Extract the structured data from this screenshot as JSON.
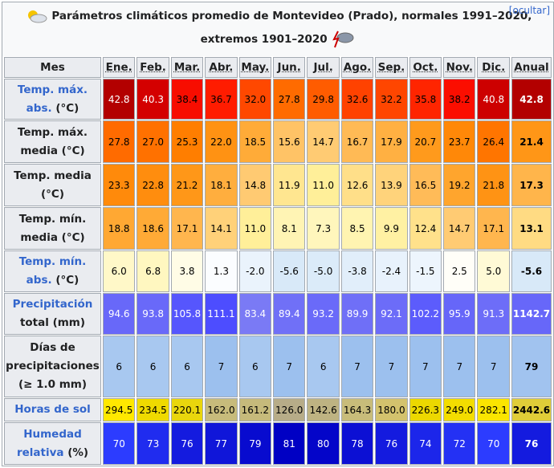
{
  "header": {
    "title_1": "Parámetros climáticos promedio de Montevideo (Prado), normales 1991–2020,",
    "title_2": "extremos 1901–2020",
    "toggle": "[ocultar]"
  },
  "table": {
    "columns": [
      "Mes",
      "Ene.",
      "Feb.",
      "Mar.",
      "Abr.",
      "May.",
      "Jun.",
      "Jul.",
      "Ago.",
      "Sep.",
      "Oct.",
      "Nov.",
      "Dic.",
      "Anual"
    ],
    "rows": [
      {
        "link": "Temp. máx. abs.",
        "text": "(°C)",
        "cells": [
          "42.8",
          "40.3",
          "38.4",
          "36.7",
          "32.0",
          "27.8",
          "29.8",
          "32.6",
          "32.2",
          "35.8",
          "38.2",
          "40.8",
          "42.8"
        ]
      },
      {
        "text": "Temp. máx. media (°C)",
        "cells": [
          "27.8",
          "27.0",
          "25.3",
          "22.0",
          "18.5",
          "15.6",
          "14.7",
          "16.7",
          "17.9",
          "20.7",
          "23.7",
          "26.4",
          "21.4"
        ]
      },
      {
        "text": "Temp. media (°C)",
        "cells": [
          "23.3",
          "22.8",
          "21.2",
          "18.1",
          "14.8",
          "11.9",
          "11.0",
          "12.6",
          "13.9",
          "16.5",
          "19.2",
          "21.8",
          "17.3"
        ]
      },
      {
        "text": "Temp. mín. media (°C)",
        "cells": [
          "18.8",
          "18.6",
          "17.1",
          "14.1",
          "11.0",
          "8.1",
          "7.3",
          "8.5",
          "9.9",
          "12.4",
          "14.7",
          "17.1",
          "13.1"
        ]
      },
      {
        "link": "Temp. mín. abs.",
        "text": "(°C)",
        "cells": [
          "6.0",
          "6.8",
          "3.8",
          "1.3",
          "-2.0",
          "-5.6",
          "-5.0",
          "-3.8",
          "-2.4",
          "-1.5",
          "2.5",
          "5.0",
          "-5.6"
        ]
      },
      {
        "link": "Precipitación",
        "text": "total (mm)",
        "cells": [
          "94.6",
          "93.8",
          "105.8",
          "111.1",
          "83.4",
          "89.4",
          "93.2",
          "89.9",
          "92.1",
          "102.2",
          "95.9",
          "91.3",
          "1142.7"
        ]
      },
      {
        "text": "Días de precipitaciones (≥ 1.0 mm)",
        "cells": [
          "6",
          "6",
          "6",
          "7",
          "6",
          "7",
          "6",
          "7",
          "7",
          "7",
          "7",
          "7",
          "79"
        ]
      },
      {
        "link": "Horas de sol",
        "cells": [
          "294.5",
          "234.5",
          "220.1",
          "162.0",
          "161.2",
          "126.0",
          "142.6",
          "164.3",
          "180.0",
          "226.3",
          "249.0",
          "282.1",
          "2442.6"
        ]
      },
      {
        "link": "Humedad relativa",
        "text": "(%)",
        "cells": [
          "70",
          "73",
          "76",
          "77",
          "79",
          "81",
          "80",
          "78",
          "76",
          "74",
          "72",
          "70",
          "76"
        ]
      }
    ]
  }
}
